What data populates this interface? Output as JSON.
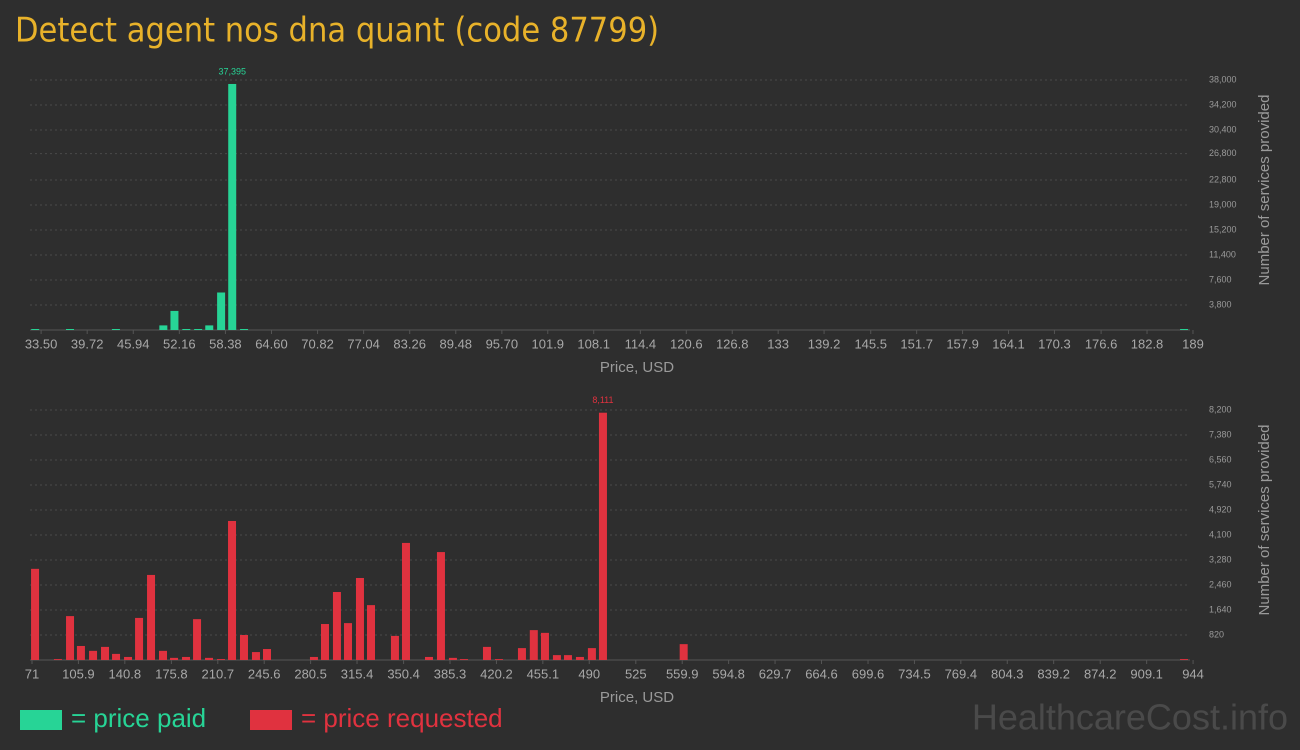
{
  "title": "Detect agent nos dna quant (code 87799)",
  "watermark": "HealthcareCost.info",
  "chart_data": [
    {
      "type": "bar",
      "xlabel": "Price, USD",
      "ylabel": "Number of services provided",
      "grid": true,
      "xlim": [
        32.0,
        188.6
      ],
      "ylim": [
        0,
        38000
      ],
      "xticks": [
        {
          "value": 33.5,
          "label": "33.50"
        },
        39.72,
        45.94,
        52.16,
        58.38,
        {
          "value": 64.6,
          "label": "64.60"
        },
        70.82,
        77.04,
        83.26,
        89.48,
        {
          "value": 95.7,
          "label": "95.70"
        },
        101.9,
        108.1,
        114.4,
        120.6,
        126.8,
        133,
        139.2,
        145.5,
        151.7,
        157.9,
        164.1,
        170.3,
        176.6,
        182.8,
        189
      ],
      "yticks": [
        {
          "value": 3800,
          "label": "3,800"
        },
        {
          "value": 7600,
          "label": "7,600"
        },
        {
          "value": 11400,
          "label": "11,400"
        },
        {
          "value": 15200,
          "label": "15,200"
        },
        {
          "value": 19000,
          "label": "19,000"
        },
        {
          "value": 22800,
          "label": "22,800"
        },
        {
          "value": 26800,
          "label": "26,800"
        },
        {
          "value": 30400,
          "label": "30,400"
        },
        {
          "value": 34200,
          "label": "34,200"
        },
        {
          "value": 38000,
          "label": "38,000"
        }
      ],
      "x": [
        32.7,
        37.4,
        43.6,
        50.0,
        51.5,
        53.1,
        54.7,
        56.2,
        57.8,
        59.3,
        60.9,
        187.8
      ],
      "series": [
        {
          "name": "= price paid",
          "color": "#27d496",
          "values": [
            150,
            150,
            150,
            700,
            2900,
            150,
            150,
            700,
            5700,
            37395,
            150,
            150
          ],
          "value_labels": [
            null,
            null,
            null,
            null,
            null,
            null,
            null,
            null,
            null,
            "37,395",
            null,
            null
          ]
        }
      ]
    },
    {
      "type": "bar",
      "xlabel": "Price, USD",
      "ylabel": "Number of services provided",
      "grid": true,
      "xlim": [
        69.5,
        941.7
      ],
      "ylim": [
        0,
        8200
      ],
      "xticks": [
        71,
        105.9,
        140.8,
        175.8,
        210.7,
        245.6,
        280.5,
        315.4,
        350.4,
        385.3,
        420.2,
        455.1,
        490,
        525,
        559.9,
        594.8,
        629.7,
        664.6,
        699.6,
        734.5,
        769.4,
        804.3,
        839.2,
        874.2,
        909.1,
        944
      ],
      "yticks": [
        820,
        {
          "value": 1640,
          "label": "1,640"
        },
        {
          "value": 2460,
          "label": "2,460"
        },
        {
          "value": 3280,
          "label": "3,280"
        },
        {
          "value": 4100,
          "label": "4,100"
        },
        {
          "value": 4920,
          "label": "4,920"
        },
        {
          "value": 5740,
          "label": "5,740"
        },
        {
          "value": 6560,
          "label": "6,560"
        },
        {
          "value": 7380,
          "label": "7,380"
        },
        {
          "value": 8200,
          "label": "8,200"
        }
      ],
      "x": [
        73.3,
        90.5,
        99.6,
        107.8,
        116.9,
        125.9,
        134.2,
        143.2,
        151.5,
        160.5,
        169.5,
        177.8,
        186.8,
        195.1,
        204.1,
        213.1,
        221.4,
        230.4,
        239.4,
        247.7,
        283.0,
        291.3,
        300.3,
        308.6,
        317.6,
        325.9,
        343.9,
        352.2,
        369.5,
        378.5,
        387.5,
        395.8,
        413.1,
        422.1,
        439.4,
        448.3,
        456.7,
        465.7,
        474.0,
        483.0,
        492.0,
        500.3,
        561.0,
        937.2
      ],
      "series": [
        {
          "name": "= price requested",
          "color": "#e0323f",
          "values": [
            2990,
            30,
            1440,
            460,
            300,
            430,
            200,
            100,
            1380,
            2790,
            300,
            70,
            100,
            1340,
            70,
            30,
            4560,
            820,
            260,
            360,
            100,
            1180,
            2230,
            1210,
            2690,
            1800,
            790,
            3840,
            100,
            3540,
            70,
            30,
            430,
            30,
            390,
            980,
            890,
            160,
            160,
            100,
            390,
            8111,
            520,
            30
          ],
          "value_labels": [
            null,
            null,
            null,
            null,
            null,
            null,
            null,
            null,
            null,
            null,
            null,
            null,
            null,
            null,
            null,
            null,
            null,
            null,
            null,
            null,
            null,
            null,
            null,
            null,
            null,
            null,
            null,
            null,
            null,
            null,
            null,
            null,
            null,
            null,
            null,
            null,
            null,
            null,
            null,
            null,
            null,
            "8,111",
            null,
            null
          ]
        }
      ]
    }
  ]
}
